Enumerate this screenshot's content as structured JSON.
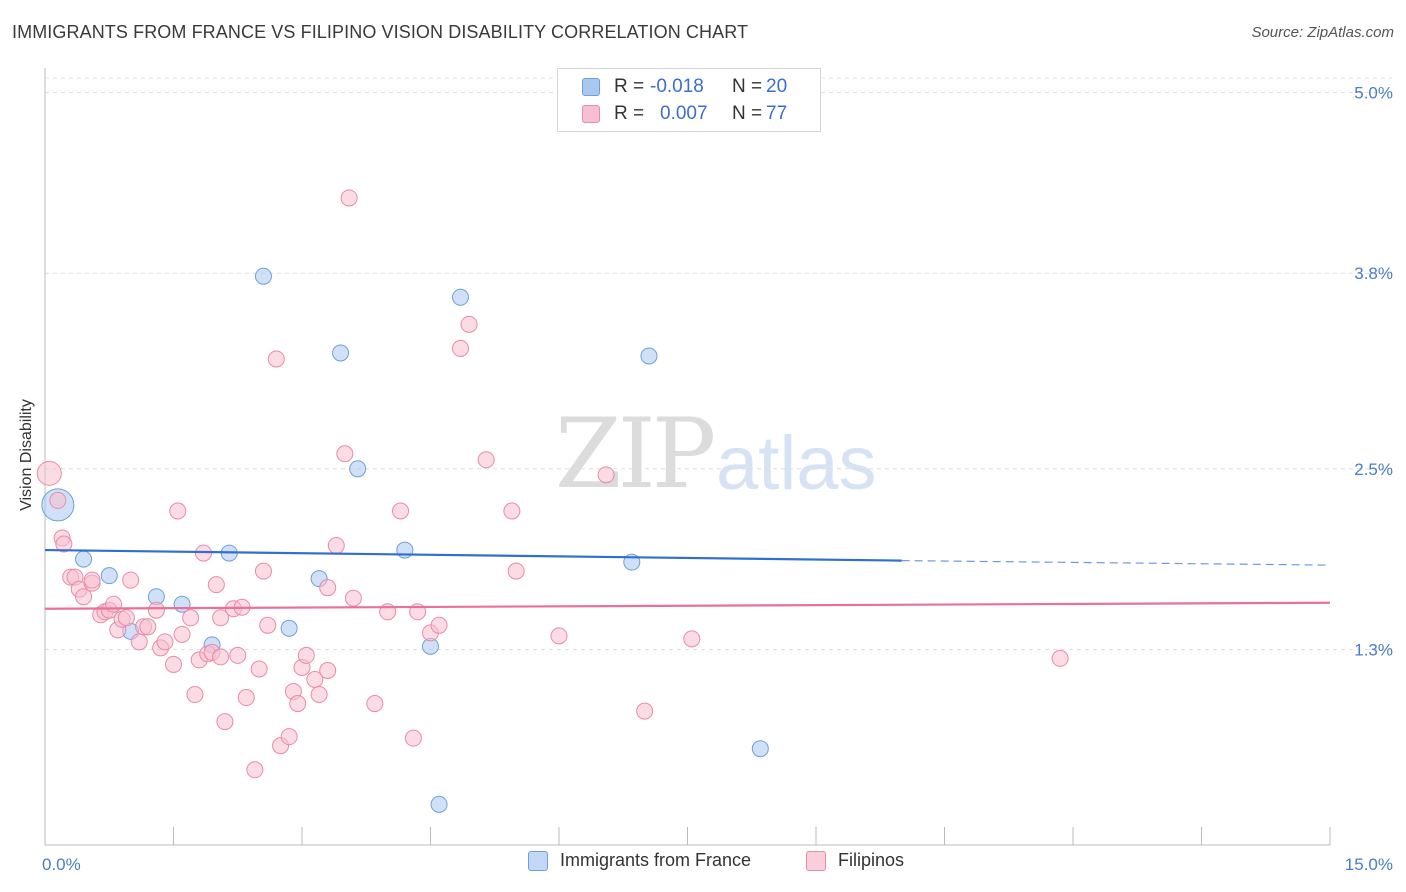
{
  "title": "IMMIGRANTS FROM FRANCE VS FILIPINO VISION DISABILITY CORRELATION CHART",
  "source": "Source: ZipAtlas.com",
  "watermark": {
    "zip": "ZIP",
    "atlas": "atlas"
  },
  "legend": {
    "rows": [
      {
        "r_label": "R =",
        "r_value": "-0.018",
        "n_label": "N =",
        "n_value": "20",
        "color": "#a9c8f0",
        "border": "#6f9fdc"
      },
      {
        "r_label": "R =",
        "r_value": "0.007",
        "n_label": "N =",
        "n_value": "77",
        "color": "#f7bfd0",
        "border": "#e98aa8"
      }
    ]
  },
  "bottom_legend": [
    {
      "label": "Immigrants from France",
      "color": "#c2d8f5",
      "border": "#6f9fdc"
    },
    {
      "label": "Filipinos",
      "color": "#f9cfdc",
      "border": "#e98aa8"
    }
  ],
  "chart_data": {
    "type": "scatter",
    "xlabel": "",
    "ylabel": "Vision Disability",
    "xlim": [
      0.0,
      15.0
    ],
    "ylim": [
      0.0,
      5.25
    ],
    "x_tick_labels": [
      {
        "value": 0.0,
        "label": "0.0%"
      },
      {
        "value": 15.0,
        "label": "15.0%"
      }
    ],
    "y_ticks": [
      {
        "value": 1.3,
        "label": "1.3%"
      },
      {
        "value": 2.5,
        "label": "2.5%"
      },
      {
        "value": 3.8,
        "label": "3.8%"
      },
      {
        "value": 5.0,
        "label": "5.0%"
      }
    ],
    "grid": "horizontal dashed",
    "series": [
      {
        "name": "Immigrants from France",
        "color": "#a9c8f0",
        "stroke": "#6f9fdc",
        "line_color": "#2f6fd0",
        "trend": {
          "x0": 0.0,
          "y0": 1.96,
          "x1": 10.0,
          "y1": 1.89,
          "x_end_dashed": 15.0,
          "y_end_dashed": 1.86
        },
        "points": [
          [
            0.15,
            2.26,
            16
          ],
          [
            0.45,
            1.9,
            8
          ],
          [
            0.75,
            1.79,
            8
          ],
          [
            1.0,
            1.42,
            8
          ],
          [
            1.3,
            1.65,
            8
          ],
          [
            1.6,
            1.6,
            8
          ],
          [
            1.95,
            1.33,
            8
          ],
          [
            2.15,
            1.94,
            8
          ],
          [
            2.55,
            3.78,
            8
          ],
          [
            2.85,
            1.44,
            8
          ],
          [
            3.2,
            1.77,
            8
          ],
          [
            3.45,
            3.27,
            8
          ],
          [
            3.65,
            2.5,
            8
          ],
          [
            4.2,
            1.96,
            8
          ],
          [
            4.5,
            1.32,
            8
          ],
          [
            4.6,
            0.27,
            8
          ],
          [
            4.85,
            3.64,
            8
          ],
          [
            6.85,
            1.88,
            8
          ],
          [
            7.05,
            3.25,
            8
          ],
          [
            8.35,
            0.64,
            8
          ]
        ]
      },
      {
        "name": "Filipinos",
        "color": "#f7bfd0",
        "stroke": "#e98aa8",
        "line_color": "#e8709a",
        "trend": {
          "x0": 0.0,
          "y0": 1.57,
          "x1": 15.0,
          "y1": 1.61
        },
        "points": [
          [
            0.05,
            2.47,
            12
          ],
          [
            0.15,
            2.29,
            8
          ],
          [
            0.2,
            2.04,
            8
          ],
          [
            0.22,
            2.0,
            8
          ],
          [
            0.3,
            1.78,
            8
          ],
          [
            0.35,
            1.78,
            8
          ],
          [
            0.4,
            1.7,
            8
          ],
          [
            0.45,
            1.65,
            8
          ],
          [
            0.55,
            1.74,
            8
          ],
          [
            0.55,
            1.76,
            8
          ],
          [
            0.65,
            1.53,
            8
          ],
          [
            0.7,
            1.55,
            8
          ],
          [
            0.75,
            1.56,
            8
          ],
          [
            0.8,
            1.6,
            8
          ],
          [
            0.85,
            1.43,
            8
          ],
          [
            0.9,
            1.5,
            8
          ],
          [
            0.95,
            1.51,
            8
          ],
          [
            1.0,
            1.76,
            8
          ],
          [
            1.1,
            1.35,
            8
          ],
          [
            1.15,
            1.45,
            8
          ],
          [
            1.2,
            1.45,
            8
          ],
          [
            1.3,
            1.56,
            8
          ],
          [
            1.35,
            1.31,
            8
          ],
          [
            1.4,
            1.35,
            8
          ],
          [
            1.5,
            1.2,
            8
          ],
          [
            1.55,
            2.22,
            8
          ],
          [
            1.6,
            1.4,
            8
          ],
          [
            1.7,
            1.51,
            8
          ],
          [
            1.75,
            1.0,
            8
          ],
          [
            1.8,
            1.23,
            8
          ],
          [
            1.85,
            1.94,
            8
          ],
          [
            1.9,
            1.27,
            8
          ],
          [
            1.95,
            1.28,
            8
          ],
          [
            2.0,
            1.73,
            8
          ],
          [
            2.05,
            1.51,
            8
          ],
          [
            2.05,
            1.25,
            8
          ],
          [
            2.1,
            0.82,
            8
          ],
          [
            2.2,
            1.57,
            8
          ],
          [
            2.25,
            1.26,
            8
          ],
          [
            2.3,
            1.58,
            8
          ],
          [
            2.35,
            0.98,
            8
          ],
          [
            2.45,
            0.5,
            8
          ],
          [
            2.5,
            1.17,
            8
          ],
          [
            2.55,
            1.82,
            8
          ],
          [
            2.6,
            1.46,
            8
          ],
          [
            2.7,
            3.23,
            8
          ],
          [
            2.75,
            0.66,
            8
          ],
          [
            2.85,
            0.72,
            8
          ],
          [
            2.9,
            1.02,
            8
          ],
          [
            2.95,
            0.94,
            8
          ],
          [
            3.0,
            1.18,
            8
          ],
          [
            3.05,
            1.26,
            8
          ],
          [
            3.15,
            1.1,
            8
          ],
          [
            3.2,
            1.0,
            8
          ],
          [
            3.3,
            1.16,
            8
          ],
          [
            3.3,
            1.71,
            8
          ],
          [
            3.4,
            1.99,
            8
          ],
          [
            3.5,
            2.6,
            8
          ],
          [
            3.55,
            4.3,
            8
          ],
          [
            3.6,
            1.64,
            8
          ],
          [
            3.85,
            0.94,
            8
          ],
          [
            4.0,
            1.55,
            8
          ],
          [
            4.15,
            2.22,
            8
          ],
          [
            4.3,
            0.71,
            8
          ],
          [
            4.35,
            1.55,
            8
          ],
          [
            4.5,
            1.41,
            8
          ],
          [
            4.6,
            1.46,
            8
          ],
          [
            4.85,
            3.3,
            8
          ],
          [
            4.95,
            3.46,
            8
          ],
          [
            5.15,
            2.56,
            8
          ],
          [
            5.45,
            2.22,
            8
          ],
          [
            5.5,
            1.82,
            8
          ],
          [
            6.0,
            1.39,
            8
          ],
          [
            6.55,
            2.46,
            8
          ],
          [
            7.0,
            0.89,
            8
          ],
          [
            7.55,
            1.37,
            8
          ],
          [
            11.85,
            1.24,
            8
          ]
        ]
      }
    ]
  }
}
